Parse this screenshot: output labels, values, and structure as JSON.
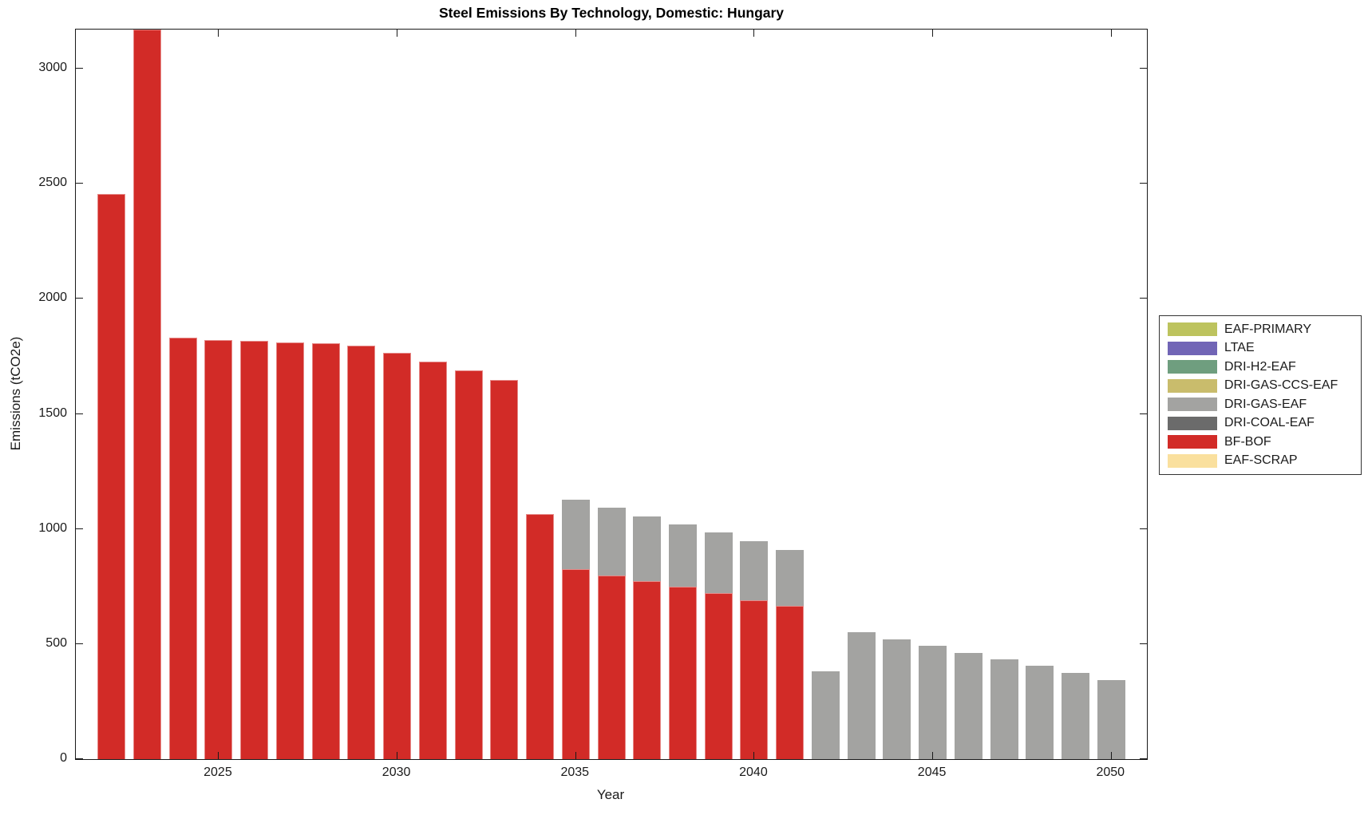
{
  "chart_data": {
    "type": "bar",
    "stacked": true,
    "title": "Steel Emissions By Technology, Domestic: Hungary",
    "xlabel": "Year",
    "ylabel": "Emissions (tCO2e)",
    "x": [
      2022,
      2023,
      2024,
      2025,
      2026,
      2027,
      2028,
      2029,
      2030,
      2031,
      2032,
      2033,
      2034,
      2035,
      2036,
      2037,
      2038,
      2039,
      2040,
      2041,
      2042,
      2043,
      2044,
      2045,
      2046,
      2047,
      2048,
      2049,
      2050
    ],
    "series": [
      {
        "name": "BF-BOF",
        "color": "#D22B27",
        "values": [
          2455,
          3170,
          1833,
          1822,
          1816,
          1811,
          1808,
          1796,
          1765,
          1727,
          1688,
          1646,
          1064,
          825,
          798,
          773,
          750,
          721,
          690,
          665,
          0,
          0,
          0,
          0,
          0,
          0,
          0,
          0,
          0
        ]
      },
      {
        "name": "DRI-GAS-EAF",
        "color": "#A3A3A1",
        "values": [
          0,
          0,
          0,
          0,
          0,
          0,
          0,
          0,
          0,
          0,
          0,
          0,
          0,
          303,
          295,
          283,
          271,
          263,
          258,
          244,
          380,
          550,
          521,
          493,
          463,
          434,
          405,
          374,
          342
        ]
      }
    ],
    "legend": [
      {
        "label": "EAF-PRIMARY",
        "color": "#BDC35E"
      },
      {
        "label": "LTAE",
        "color": "#7165B6"
      },
      {
        "label": "DRI-H2-EAF",
        "color": "#6F9E7F"
      },
      {
        "label": "DRI-GAS-CCS-EAF",
        "color": "#C9BC6C"
      },
      {
        "label": "DRI-GAS-EAF",
        "color": "#A3A3A1"
      },
      {
        "label": "DRI-COAL-EAF",
        "color": "#6B6B6B"
      },
      {
        "label": "BF-BOF",
        "color": "#D22B27"
      },
      {
        "label": "EAF-SCRAP",
        "color": "#FAE09E"
      }
    ],
    "xlim": [
      2021,
      2051
    ],
    "ylim": [
      0,
      3170
    ],
    "yticks": [
      0,
      500,
      1000,
      1500,
      2000,
      2500,
      3000
    ],
    "xticks": [
      2025,
      2030,
      2035,
      2040,
      2045,
      2050
    ],
    "grid": false,
    "legend_position": "right-middle-outside",
    "axis_color": "#1a1a1a",
    "background_color": "#ffffff"
  }
}
